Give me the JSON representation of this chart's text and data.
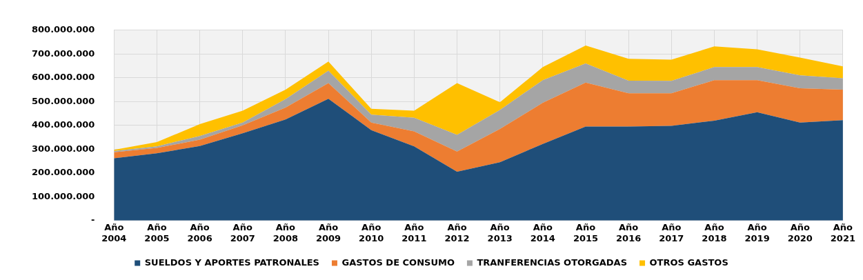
{
  "chart_data": {
    "type": "area",
    "stacked": true,
    "categories": [
      "Año 2004",
      "Año 2005",
      "Año 2006",
      "Año 2007",
      "Año 2008",
      "Año 2009",
      "Año 2010",
      "Año 2011",
      "Año 2012",
      "Año 2013",
      "Año 2014",
      "Año 2015",
      "Año 2016",
      "Año 2017",
      "Año 2018",
      "Año 2019",
      "Año 2020",
      "Año 2021"
    ],
    "series": [
      {
        "name": "SUELDOS Y APORTES PATRONALES",
        "color": "#1f4e79",
        "values": [
          262000000,
          283000000,
          313000000,
          367000000,
          425000000,
          512000000,
          380000000,
          312000000,
          205000000,
          245000000,
          322000000,
          395000000,
          395000000,
          398000000,
          420000000,
          455000000,
          412000000,
          422000000
        ]
      },
      {
        "name": "GASTOS DE CONSUMO",
        "color": "#ed7d31",
        "values": [
          25000000,
          22000000,
          27000000,
          33000000,
          50000000,
          66000000,
          32000000,
          63000000,
          85000000,
          140000000,
          173000000,
          185000000,
          140000000,
          137000000,
          170000000,
          135000000,
          144000000,
          128000000
        ]
      },
      {
        "name": "TRANFERENCIAS OTORGADAS",
        "color": "#a5a5a5",
        "values": [
          5000000,
          7000000,
          15000000,
          12000000,
          35000000,
          52000000,
          33000000,
          57000000,
          70000000,
          80000000,
          95000000,
          80000000,
          53000000,
          52000000,
          55000000,
          55000000,
          54000000,
          48000000
        ]
      },
      {
        "name": "OTROS GASTOS",
        "color": "#ffc000",
        "values": [
          5000000,
          18000000,
          50000000,
          50000000,
          40000000,
          38000000,
          25000000,
          30000000,
          218000000,
          32000000,
          55000000,
          76000000,
          92000000,
          89000000,
          87000000,
          75000000,
          75000000,
          50000000
        ]
      }
    ],
    "ylim": [
      0,
      800000000
    ],
    "yticks": [
      {
        "value": 0,
        "label": "-"
      },
      {
        "value": 100000000,
        "label": "100.000.000"
      },
      {
        "value": 200000000,
        "label": "200.000.000"
      },
      {
        "value": 300000000,
        "label": "300.000.000"
      },
      {
        "value": 400000000,
        "label": "400.000.000"
      },
      {
        "value": 500000000,
        "label": "500.000.000"
      },
      {
        "value": 600000000,
        "label": "600.000.000"
      },
      {
        "value": 700000000,
        "label": "700.000.000"
      },
      {
        "value": 800000000,
        "label": "800.000.000"
      }
    ],
    "grid": true,
    "legend": "bottom"
  }
}
